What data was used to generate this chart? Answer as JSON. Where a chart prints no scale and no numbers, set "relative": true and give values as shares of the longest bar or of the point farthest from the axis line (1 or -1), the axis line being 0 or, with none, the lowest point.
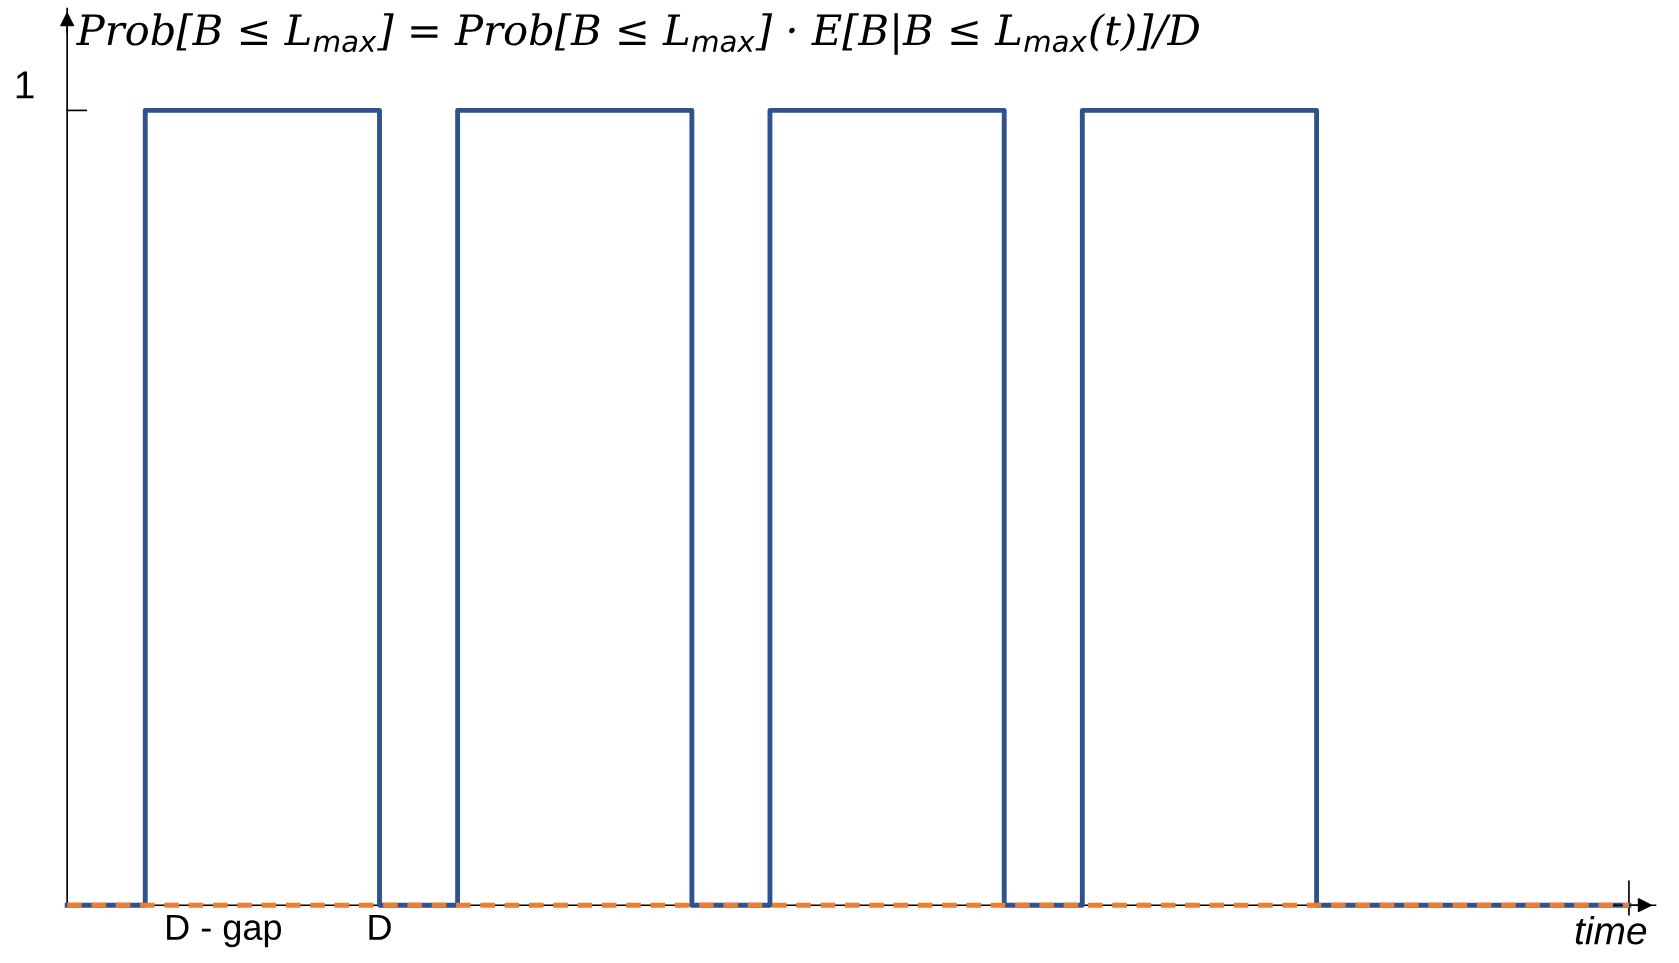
{
  "chart_data": {
    "type": "step",
    "title": "Prob[B ≤ L$_{max}$] = Prob[B ≤ L$_{max}$] · E[B|B ≤ L$_{max}$(t)]/D",
    "xlabel": "time",
    "relative": true,
    "categories": [
      null,
      null,
      "D - gap",
      null,
      "D",
      null,
      null,
      null,
      null,
      null,
      null,
      null,
      null,
      null,
      null,
      null,
      null,
      null,
      null,
      null,
      null
    ],
    "series": [
      {
        "color": "#2f528f",
        "values": [
          0,
          1,
          1,
          1,
          0,
          1,
          1,
          1,
          0,
          1,
          1,
          1,
          0,
          1,
          1,
          1,
          0,
          0,
          0,
          0,
          0
        ]
      },
      {
        "type": "line",
        "color": "#ed7d31",
        "line_style": "dashed",
        "values": [
          0,
          0,
          0,
          0,
          0,
          0,
          0,
          0,
          0,
          0,
          0,
          0,
          0,
          0,
          0,
          0,
          0,
          0,
          0,
          0,
          0
        ]
      }
    ],
    "annotations": [
      "1"
    ],
    "grid": false,
    "legend": false
  }
}
